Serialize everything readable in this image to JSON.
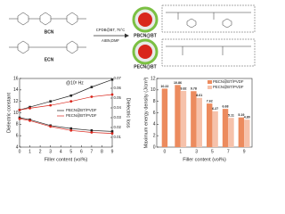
{
  "scheme": {
    "monomers": [
      "BCN",
      "ECN"
    ],
    "conditions": [
      "CPDB@BT, 75°C",
      "AIBN,DMF"
    ],
    "products": [
      "PBCN@BT",
      "PECN@BT"
    ]
  },
  "chart_data": [
    {
      "type": "line",
      "annotation": "@10³ Hz",
      "x_label": "Filler content (vol%)",
      "y_label": "Dielectric constant",
      "y2_label": "Dielectric loss",
      "x": [
        0,
        1,
        3,
        5,
        7,
        9
      ],
      "xlim": [
        0,
        9
      ],
      "xticks": [
        0,
        1,
        2,
        3,
        4,
        5,
        6,
        7,
        8,
        9
      ],
      "ylim": [
        4,
        16
      ],
      "yticks": [
        4,
        6,
        8,
        10,
        12,
        14,
        16
      ],
      "y2lim": [
        0,
        0.07
      ],
      "y2ticks": [
        0.01,
        0.02,
        0.03,
        0.04,
        0.05,
        0.06,
        0.07
      ],
      "series": [
        {
          "name": "PBCN@BT/PVDF",
          "color": "#222222",
          "marker": "square",
          "values": [
            10.5,
            11,
            12,
            13,
            14.5,
            15.8
          ],
          "y2_values": [
            0.03,
            0.028,
            0.022,
            0.019,
            0.017,
            0.016
          ]
        },
        {
          "name": "PECN@BT/PVDF",
          "color": "#d9261c",
          "marker": "circle",
          "values": [
            10.5,
            10.8,
            11.3,
            12,
            12.8,
            13.2
          ],
          "y2_values": [
            0.029,
            0.027,
            0.021,
            0.017,
            0.015,
            0.014
          ]
        }
      ]
    },
    {
      "type": "bar",
      "x_label": "Filler content (vol%)",
      "y_label": "Maximum energy density (J/cm³)",
      "categories": [
        "0",
        "1",
        "3",
        "5",
        "7",
        "9"
      ],
      "ylim": [
        0,
        12
      ],
      "yticks": [
        0,
        2,
        4,
        6,
        8,
        10,
        12
      ],
      "series": [
        {
          "name": "PBCN@BT/PVDF",
          "color": "#ec8b5e",
          "values": [
            10.22,
            10.86,
            9.78,
            7.62,
            6.68,
            5.19
          ],
          "value_labels": [
            "10.22",
            "10.86",
            "9.78",
            "7.62",
            "6.68",
            "5.19"
          ]
        },
        {
          "name": "PECN@BT/PVDF",
          "color": "#f6c2ab",
          "values": [
            null,
            9.82,
            8.61,
            6.27,
            5.11,
            4.8
          ],
          "value_labels": [
            null,
            "9.82",
            "8.61",
            "6.27",
            "5.11",
            "4.80"
          ]
        }
      ]
    }
  ]
}
